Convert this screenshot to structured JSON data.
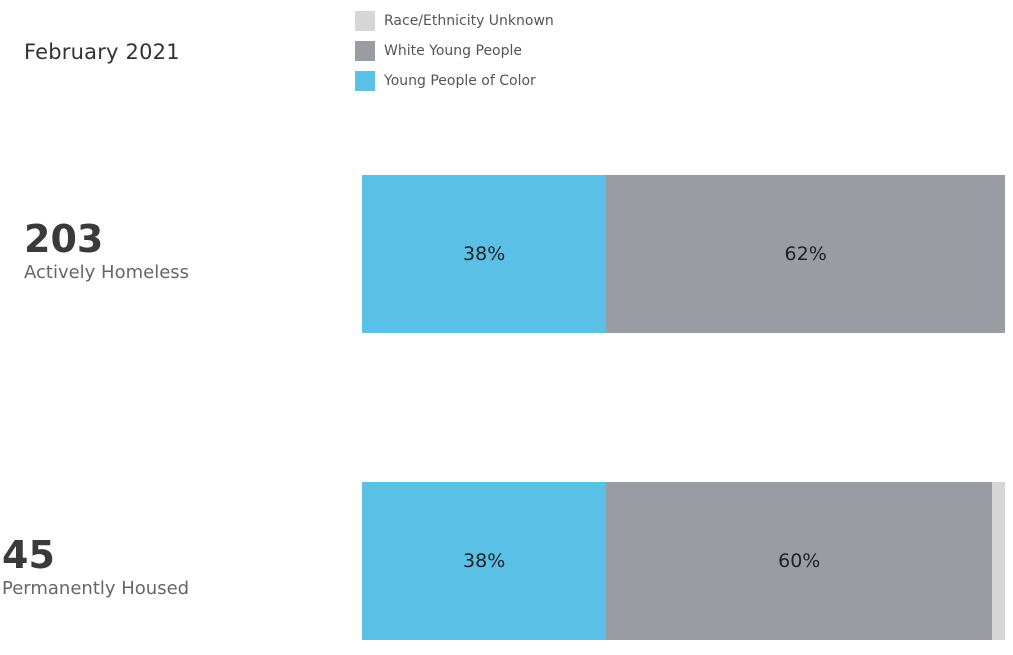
{
  "period": "February 2021",
  "chart_data": {
    "type": "bar",
    "orientation": "horizontal-stacked",
    "series": [
      {
        "name": "Young People of Color",
        "color": "#5bc0e6"
      },
      {
        "name": "White Young People",
        "color": "#999da3"
      },
      {
        "name": "Race/Ethnicity Unknown",
        "color": "#d6d6d6"
      }
    ],
    "legend": [
      {
        "label": "Race/Ethnicity Unknown",
        "color": "#d6d6d6"
      },
      {
        "label": "White Young People",
        "color": "#999da3"
      },
      {
        "label": "Young People of Color",
        "color": "#5bc0e6"
      }
    ],
    "rows": [
      {
        "count": "203",
        "label": "Actively Homeless",
        "values": [
          38,
          62,
          0
        ],
        "value_labels": [
          "38%",
          "62%",
          ""
        ]
      },
      {
        "count": "45",
        "label": "Permanently Housed",
        "values": [
          38,
          60,
          2
        ],
        "value_labels": [
          "38%",
          "60%",
          ""
        ]
      }
    ],
    "xlim": [
      0,
      100
    ],
    "legend_position": "top"
  }
}
